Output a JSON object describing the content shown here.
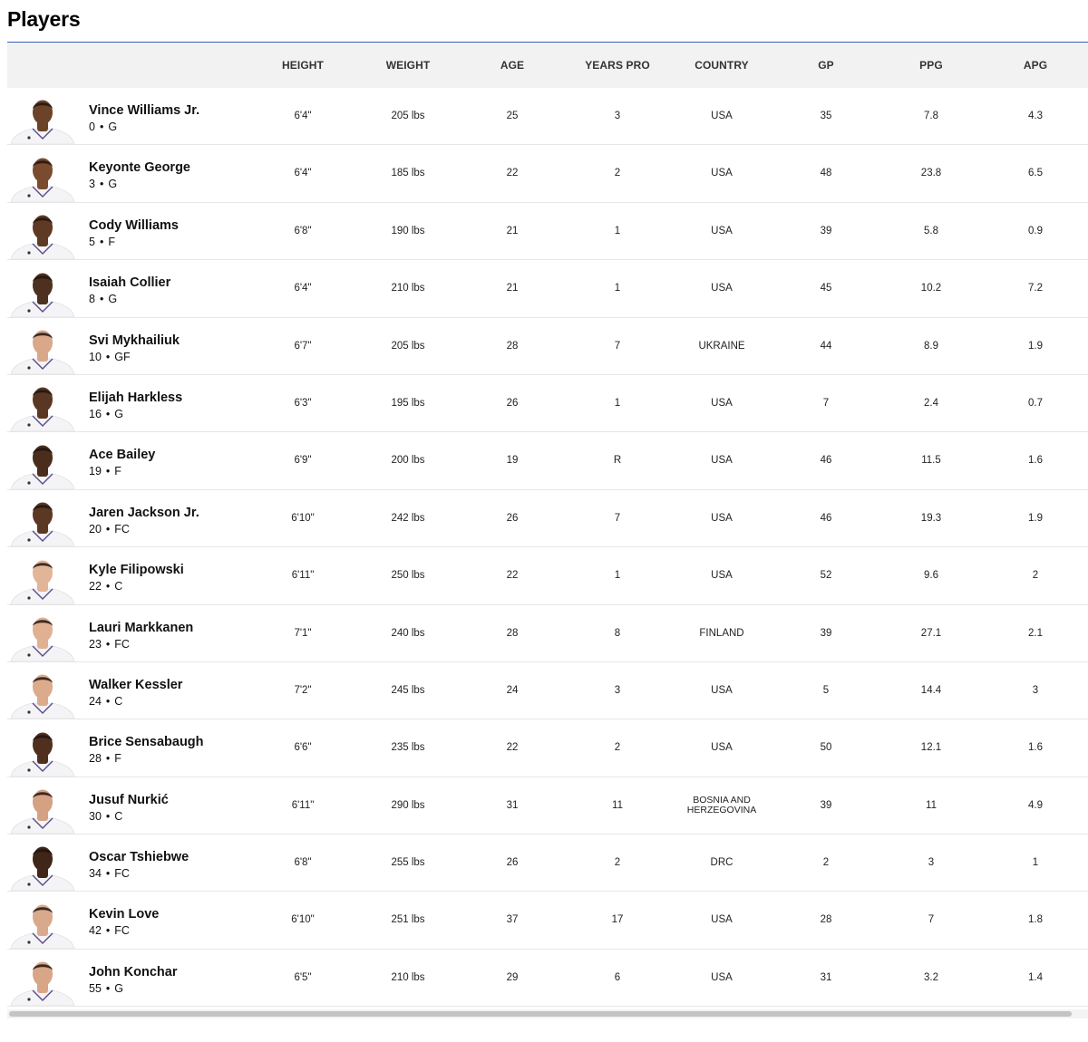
{
  "title": "Players",
  "columns": [
    "HEIGHT",
    "WEIGHT",
    "AGE",
    "YEARS PRO",
    "COUNTRY",
    "GP",
    "PPG",
    "APG"
  ],
  "players": [
    {
      "name": "Vince Williams Jr.",
      "number": "0",
      "position": "G",
      "height": "6'4\"",
      "weight": "205 lbs",
      "age": "25",
      "years_pro": "3",
      "country": "USA",
      "gp": "35",
      "ppg": "7.8",
      "apg": "4.3",
      "skin": "#6b4329",
      "jersey": "#f4f4f6"
    },
    {
      "name": "Keyonte George",
      "number": "3",
      "position": "G",
      "height": "6'4\"",
      "weight": "185 lbs",
      "age": "22",
      "years_pro": "2",
      "country": "USA",
      "gp": "48",
      "ppg": "23.8",
      "apg": "6.5",
      "skin": "#7a4b2e",
      "jersey": "#f4f4f6"
    },
    {
      "name": "Cody Williams",
      "number": "5",
      "position": "F",
      "height": "6'8\"",
      "weight": "190 lbs",
      "age": "21",
      "years_pro": "1",
      "country": "USA",
      "gp": "39",
      "ppg": "5.8",
      "apg": "0.9",
      "skin": "#5e3a24",
      "jersey": "#f4f4f6"
    },
    {
      "name": "Isaiah Collier",
      "number": "8",
      "position": "G",
      "height": "6'4\"",
      "weight": "210 lbs",
      "age": "21",
      "years_pro": "1",
      "country": "USA",
      "gp": "45",
      "ppg": "10.2",
      "apg": "7.2",
      "skin": "#4e3020",
      "jersey": "#f4f4f6"
    },
    {
      "name": "Svi Mykhailiuk",
      "number": "10",
      "position": "GF",
      "height": "6'7\"",
      "weight": "205 lbs",
      "age": "28",
      "years_pro": "7",
      "country": "UKRAINE",
      "gp": "44",
      "ppg": "8.9",
      "apg": "1.9",
      "skin": "#d9a88a",
      "jersey": "#f4f4f6"
    },
    {
      "name": "Elijah Harkless",
      "number": "16",
      "position": "G",
      "height": "6'3\"",
      "weight": "195 lbs",
      "age": "26",
      "years_pro": "1",
      "country": "USA",
      "gp": "7",
      "ppg": "2.4",
      "apg": "0.7",
      "skin": "#5a3722",
      "jersey": "#f4f4f6"
    },
    {
      "name": "Ace Bailey",
      "number": "19",
      "position": "F",
      "height": "6'9\"",
      "weight": "200 lbs",
      "age": "19",
      "years_pro": "R",
      "country": "USA",
      "gp": "46",
      "ppg": "11.5",
      "apg": "1.6",
      "skin": "#4a2d1c",
      "jersey": "#f4f4f6"
    },
    {
      "name": "Jaren Jackson Jr.",
      "number": "20",
      "position": "FC",
      "height": "6'10\"",
      "weight": "242 lbs",
      "age": "26",
      "years_pro": "7",
      "country": "USA",
      "gp": "46",
      "ppg": "19.3",
      "apg": "1.9",
      "skin": "#5b3823",
      "jersey": "#f4f4f6"
    },
    {
      "name": "Kyle Filipowski",
      "number": "22",
      "position": "C",
      "height": "6'11\"",
      "weight": "250 lbs",
      "age": "22",
      "years_pro": "1",
      "country": "USA",
      "gp": "52",
      "ppg": "9.6",
      "apg": "2",
      "skin": "#e2b498",
      "jersey": "#f4f4f6"
    },
    {
      "name": "Lauri Markkanen",
      "number": "23",
      "position": "FC",
      "height": "7'1\"",
      "weight": "240 lbs",
      "age": "28",
      "years_pro": "8",
      "country": "FINLAND",
      "gp": "39",
      "ppg": "27.1",
      "apg": "2.1",
      "skin": "#e0b093",
      "jersey": "#f4f4f6"
    },
    {
      "name": "Walker Kessler",
      "number": "24",
      "position": "C",
      "height": "7'2\"",
      "weight": "245 lbs",
      "age": "24",
      "years_pro": "3",
      "country": "USA",
      "gp": "5",
      "ppg": "14.4",
      "apg": "3",
      "skin": "#dcab8c",
      "jersey": "#f4f4f6"
    },
    {
      "name": "Brice Sensabaugh",
      "number": "28",
      "position": "F",
      "height": "6'6\"",
      "weight": "235 lbs",
      "age": "22",
      "years_pro": "2",
      "country": "USA",
      "gp": "50",
      "ppg": "12.1",
      "apg": "1.6",
      "skin": "#4f301e",
      "jersey": "#f4f4f6"
    },
    {
      "name": "Jusuf Nurkić",
      "number": "30",
      "position": "C",
      "height": "6'11\"",
      "weight": "290 lbs",
      "age": "31",
      "years_pro": "11",
      "country": "BOSNIA AND HERZEGOVINA",
      "gp": "39",
      "ppg": "11",
      "apg": "4.9",
      "skin": "#d4a183",
      "jersey": "#f4f4f6"
    },
    {
      "name": "Oscar Tshiebwe",
      "number": "34",
      "position": "FC",
      "height": "6'8\"",
      "weight": "255 lbs",
      "age": "26",
      "years_pro": "2",
      "country": "DRC",
      "gp": "2",
      "ppg": "3",
      "apg": "1",
      "skin": "#3f2618",
      "jersey": "#f4f4f6"
    },
    {
      "name": "Kevin Love",
      "number": "42",
      "position": "FC",
      "height": "6'10\"",
      "weight": "251 lbs",
      "age": "37",
      "years_pro": "17",
      "country": "USA",
      "gp": "28",
      "ppg": "7",
      "apg": "1.8",
      "skin": "#d9a98c",
      "jersey": "#f4f4f6"
    },
    {
      "name": "John Konchar",
      "number": "55",
      "position": "G",
      "height": "6'5\"",
      "weight": "210 lbs",
      "age": "29",
      "years_pro": "6",
      "country": "USA",
      "gp": "31",
      "ppg": "3.2",
      "apg": "1.4",
      "skin": "#d8a587",
      "jersey": "#f4f4f6"
    }
  ]
}
